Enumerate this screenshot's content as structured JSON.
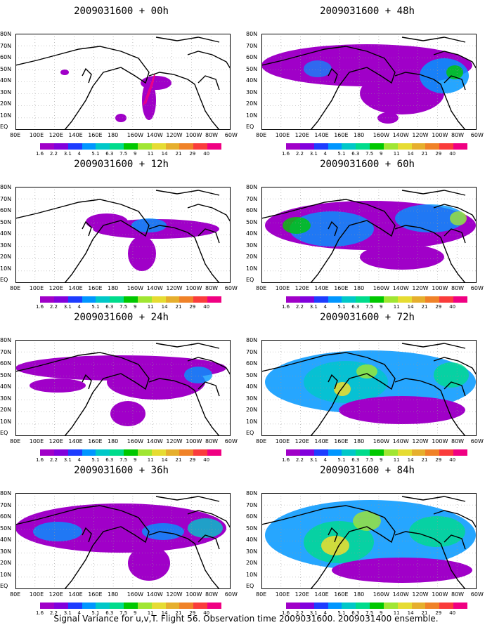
{
  "panels": [
    {
      "title": "2009031600 + 00h",
      "col": 0,
      "row": 0
    },
    {
      "title": "2009031600 + 48h",
      "col": 1,
      "row": 0
    },
    {
      "title": "2009031600 + 12h",
      "col": 0,
      "row": 1
    },
    {
      "title": "2009031600 + 60h",
      "col": 1,
      "row": 1
    },
    {
      "title": "2009031600 + 24h",
      "col": 0,
      "row": 2
    },
    {
      "title": "2009031600 + 72h",
      "col": 1,
      "row": 2
    },
    {
      "title": "2009031600 + 36h",
      "col": 0,
      "row": 3
    },
    {
      "title": "2009031600 + 84h",
      "col": 1,
      "row": 3
    }
  ],
  "lat_labels": [
    "80N",
    "70N",
    "60N",
    "50N",
    "40N",
    "30N",
    "20N",
    "10N",
    "EQ"
  ],
  "lon_labels": [
    "80E",
    "100E",
    "120E",
    "140E",
    "160E",
    "180",
    "160W",
    "140W",
    "120W",
    "100W",
    "80W",
    "60W"
  ],
  "colorbar": {
    "labels": [
      "1.6",
      "2.2",
      "3.1",
      "4",
      "5.1",
      "6.3",
      "7.5",
      "9",
      "11",
      "14",
      "21",
      "29",
      "40"
    ],
    "colors": [
      "#a000c8",
      "#8200dc",
      "#1e3cff",
      "#0096ff",
      "#00c8c8",
      "#00dc8c",
      "#00c800",
      "#a0e632",
      "#e6dc32",
      "#e6af2d",
      "#f08228",
      "#fa3c3c",
      "#f00082"
    ]
  },
  "footer": "Signal Variance for u,v,T. Flight 56. Observation time 2009031600. 2009031400 ensemble."
}
